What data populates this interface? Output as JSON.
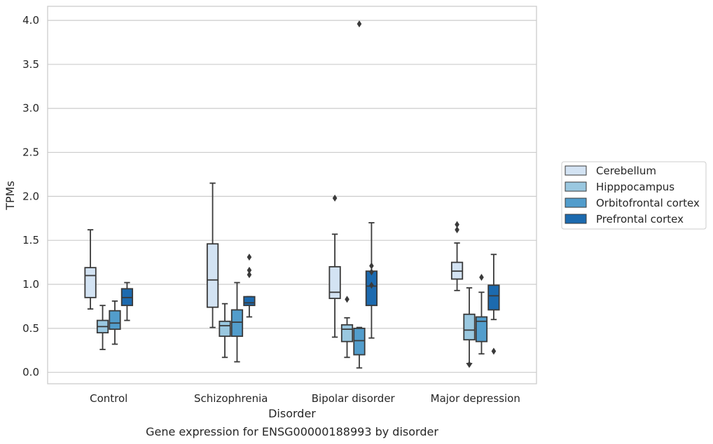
{
  "caption": "Gene expression for ENSG00000188993 by disorder",
  "chart_data": {
    "type": "box",
    "xlabel": "Disorder",
    "ylabel": "TPMs",
    "ylim": [
      -0.13,
      4.16
    ],
    "yticks": [
      0.0,
      0.5,
      1.0,
      1.5,
      2.0,
      2.5,
      3.0,
      3.5,
      4.0
    ],
    "ytick_labels": [
      "0.0",
      "0.5",
      "1.0",
      "1.5",
      "2.0",
      "2.5",
      "3.0",
      "3.5",
      "4.0"
    ],
    "grid": "horizontal",
    "legend_position": "right",
    "categories": [
      "Control",
      "Schizophrenia",
      "Bipolar disorder",
      "Major depression"
    ],
    "series": [
      {
        "name": "Cerebellum",
        "color": "#d3e3f3",
        "boxes": [
          {
            "whislo": 0.72,
            "q1": 0.85,
            "med": 1.1,
            "q3": 1.19,
            "whishi": 1.62,
            "fliers": []
          },
          {
            "whislo": 0.51,
            "q1": 0.74,
            "med": 1.05,
            "q3": 1.46,
            "whishi": 2.15,
            "fliers": []
          },
          {
            "whislo": 0.4,
            "q1": 0.84,
            "med": 0.91,
            "q3": 1.2,
            "whishi": 1.57,
            "fliers": [
              1.98
            ]
          },
          {
            "whislo": 0.93,
            "q1": 1.06,
            "med": 1.15,
            "q3": 1.25,
            "whishi": 1.47,
            "fliers": [
              1.62,
              1.68
            ]
          }
        ]
      },
      {
        "name": "Hipppocampus",
        "color": "#9ac8e0",
        "boxes": [
          {
            "whislo": 0.26,
            "q1": 0.45,
            "med": 0.52,
            "q3": 0.59,
            "whishi": 0.76,
            "fliers": []
          },
          {
            "whislo": 0.17,
            "q1": 0.41,
            "med": 0.53,
            "q3": 0.58,
            "whishi": 0.78,
            "fliers": []
          },
          {
            "whislo": 0.17,
            "q1": 0.35,
            "med": 0.49,
            "q3": 0.54,
            "whishi": 0.62,
            "fliers": [
              0.83
            ]
          },
          {
            "whislo": 0.1,
            "q1": 0.37,
            "med": 0.48,
            "q3": 0.66,
            "whishi": 0.96,
            "fliers": [
              0.09
            ]
          }
        ]
      },
      {
        "name": "Orbitofrontal cortex",
        "color": "#529dcc",
        "boxes": [
          {
            "whislo": 0.32,
            "q1": 0.49,
            "med": 0.56,
            "q3": 0.7,
            "whishi": 0.81,
            "fliers": []
          },
          {
            "whislo": 0.12,
            "q1": 0.41,
            "med": 0.57,
            "q3": 0.71,
            "whishi": 1.02,
            "fliers": []
          },
          {
            "whislo": 0.05,
            "q1": 0.2,
            "med": 0.36,
            "q3": 0.5,
            "whishi": 0.51,
            "fliers": [
              3.96
            ]
          },
          {
            "whislo": 0.21,
            "q1": 0.35,
            "med": 0.58,
            "q3": 0.63,
            "whishi": 0.91,
            "fliers": [
              1.08
            ]
          }
        ]
      },
      {
        "name": "Prefrontal cortex",
        "color": "#1c6aaf",
        "boxes": [
          {
            "whislo": 0.59,
            "q1": 0.76,
            "med": 0.85,
            "q3": 0.95,
            "whishi": 1.02,
            "fliers": []
          },
          {
            "whislo": 0.63,
            "q1": 0.76,
            "med": 0.79,
            "q3": 0.86,
            "whishi": 0.86,
            "fliers": [
              1.11,
              1.16,
              1.31
            ]
          },
          {
            "whislo": 0.39,
            "q1": 0.76,
            "med": 0.98,
            "q3": 1.15,
            "whishi": 1.7,
            "fliers": [
              0.99,
              1.14,
              1.21
            ]
          },
          {
            "whislo": 0.6,
            "q1": 0.71,
            "med": 0.87,
            "q3": 0.99,
            "whishi": 1.34,
            "fliers": [
              0.24
            ]
          }
        ]
      }
    ]
  }
}
